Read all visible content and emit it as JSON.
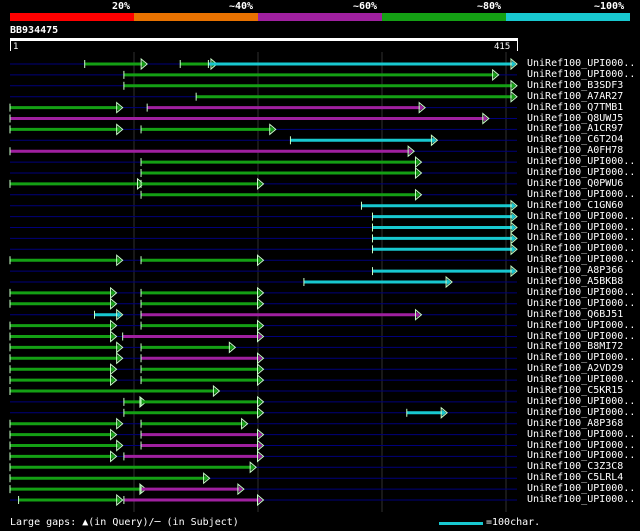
{
  "query": {
    "id": "BB934475",
    "length_start": "1",
    "length_end": "415"
  },
  "identity_scale": [
    {
      "label": "20%",
      "color": "#ff0000"
    },
    {
      "label": "~40%",
      "color": "#e87200"
    },
    {
      "label": "~60%",
      "color": "#a020a0"
    },
    {
      "label": "~80%",
      "color": "#14a014"
    },
    {
      "label": "~100%",
      "color": "#18c8d0"
    }
  ],
  "colors": {
    "red": "#ff0000",
    "orange": "#e87200",
    "magenta": "#a020a0",
    "green": "#14a014",
    "cyan": "#18c8d0",
    "track": "#00007a"
  },
  "hits": [
    {
      "label": "UniRef100_UPI000..",
      "segs": [
        [
          1,
          "green",
          62,
          113
        ],
        [
          4,
          "green",
          140,
          170
        ],
        [
          1,
          "cyan",
          163,
          415
        ]
      ]
    },
    {
      "label": "UniRef100_UPI000..",
      "segs": [
        [
          1,
          "green",
          94,
          400
        ]
      ]
    },
    {
      "label": "UniRef100_B3SDF3",
      "segs": [
        [
          1,
          "green",
          94,
          415
        ]
      ]
    },
    {
      "label": "UniRef100_A7AR27",
      "segs": [
        [
          1,
          "green",
          153,
          415
        ]
      ]
    },
    {
      "label": "UniRef100_Q7TMB1",
      "segs": [
        [
          0,
          "green",
          1,
          93
        ],
        [
          0,
          "magenta",
          113,
          340
        ]
      ]
    },
    {
      "label": "UniRef100_Q8UWJ5",
      "segs": [
        [
          1,
          "magenta",
          1,
          392
        ]
      ]
    },
    {
      "label": "UniRef100_A1CR97",
      "segs": [
        [
          0,
          "green",
          1,
          93
        ],
        [
          0,
          "green",
          108,
          218
        ]
      ]
    },
    {
      "label": "UniRef100_C6T2O4",
      "segs": [
        [
          0,
          "cyan",
          230,
          350
        ]
      ]
    },
    {
      "label": "UniRef100_A0FH78",
      "segs": [
        [
          1,
          "magenta",
          1,
          331
        ]
      ]
    },
    {
      "label": "UniRef100_UPI000..",
      "segs": [
        [
          0,
          "green",
          108,
          337
        ]
      ]
    },
    {
      "label": "UniRef100_UPI000..",
      "segs": [
        [
          0,
          "green",
          108,
          337
        ]
      ]
    },
    {
      "label": "UniRef100_Q0PWU6",
      "segs": [
        [
          1,
          "green",
          1,
          110
        ],
        [
          0,
          "green",
          108,
          208
        ]
      ]
    },
    {
      "label": "UniRef100_UPI000..",
      "segs": [
        [
          0,
          "green",
          108,
          337
        ]
      ]
    },
    {
      "label": "UniRef100_C1GN60",
      "segs": [
        [
          0,
          "cyan",
          288,
          415
        ]
      ]
    },
    {
      "label": "UniRef100_UPI000..",
      "segs": [
        [
          0,
          "cyan",
          297,
          415
        ]
      ]
    },
    {
      "label": "UniRef100_UPI000..",
      "segs": [
        [
          0,
          "cyan",
          297,
          415
        ]
      ]
    },
    {
      "label": "UniRef100_UPI000..",
      "segs": [
        [
          0,
          "cyan",
          297,
          415
        ]
      ]
    },
    {
      "label": "UniRef100_UPI000..",
      "segs": [
        [
          0,
          "cyan",
          297,
          415
        ]
      ]
    },
    {
      "label": "UniRef100_UPI000..",
      "segs": [
        [
          0,
          "green",
          1,
          93
        ],
        [
          0,
          "green",
          108,
          208
        ]
      ]
    },
    {
      "label": "UniRef100_A8P366",
      "segs": [
        [
          0,
          "cyan",
          297,
          415
        ]
      ]
    },
    {
      "label": "UniRef100_A5BKB8",
      "segs": [
        [
          0,
          "cyan",
          241,
          362
        ]
      ]
    },
    {
      "label": "UniRef100_UPI000..",
      "segs": [
        [
          0,
          "green",
          1,
          88
        ],
        [
          0,
          "green",
          108,
          208
        ]
      ]
    },
    {
      "label": "UniRef100_UPI000..",
      "segs": [
        [
          0,
          "green",
          1,
          88
        ],
        [
          0,
          "green",
          108,
          208
        ]
      ]
    },
    {
      "label": "UniRef100_Q6BJ51",
      "segs": [
        [
          0,
          "cyan",
          70,
          93
        ],
        [
          1,
          "magenta",
          108,
          337
        ]
      ]
    },
    {
      "label": "UniRef100_UPI000..",
      "segs": [
        [
          0,
          "green",
          1,
          88
        ],
        [
          0,
          "green",
          108,
          208
        ]
      ]
    },
    {
      "label": "UniRef100_UPI000..",
      "segs": [
        [
          0,
          "green",
          1,
          88
        ],
        [
          0,
          "magenta",
          93,
          208
        ]
      ]
    },
    {
      "label": "UniRef100_B8MI72",
      "segs": [
        [
          0,
          "green",
          1,
          93
        ],
        [
          0,
          "green",
          108,
          185
        ]
      ]
    },
    {
      "label": "UniRef100_UPI000..",
      "segs": [
        [
          0,
          "green",
          1,
          93
        ],
        [
          0,
          "magenta",
          108,
          208
        ]
      ]
    },
    {
      "label": "UniRef100_A2VD29",
      "segs": [
        [
          0,
          "green",
          1,
          88
        ],
        [
          0,
          "green",
          108,
          208
        ]
      ]
    },
    {
      "label": "UniRef100_UPI000..",
      "segs": [
        [
          0,
          "green",
          1,
          88
        ],
        [
          0,
          "green",
          108,
          208
        ]
      ]
    },
    {
      "label": "UniRef100_C5KR15",
      "segs": [
        [
          0,
          "green",
          1,
          172
        ]
      ]
    },
    {
      "label": "UniRef100_UPI000..",
      "segs": [
        [
          0,
          "green",
          94,
          112
        ],
        [
          0,
          "green",
          108,
          208
        ]
      ]
    },
    {
      "label": "UniRef100_UPI000..",
      "segs": [
        [
          0,
          "green",
          94,
          208
        ],
        [
          0,
          "cyan",
          325,
          358
        ]
      ]
    },
    {
      "label": "UniRef100_A8P368",
      "segs": [
        [
          0,
          "green",
          1,
          93
        ],
        [
          0,
          "green",
          108,
          195
        ]
      ]
    },
    {
      "label": "UniRef100_UPI000..",
      "segs": [
        [
          0,
          "green",
          1,
          88
        ],
        [
          0,
          "magenta",
          108,
          208
        ]
      ]
    },
    {
      "label": "UniRef100_UPI000..",
      "segs": [
        [
          0,
          "green",
          1,
          93
        ],
        [
          0,
          "magenta",
          108,
          208
        ]
      ]
    },
    {
      "label": "UniRef100_UPI000..",
      "segs": [
        [
          0,
          "green",
          1,
          88
        ],
        [
          0,
          "magenta",
          94,
          208
        ]
      ]
    },
    {
      "label": "UniRef100_C3Z3C8",
      "segs": [
        [
          0,
          "green",
          1,
          202
        ]
      ]
    },
    {
      "label": "UniRef100_C5LRL4",
      "segs": [
        [
          0,
          "green",
          1,
          164
        ]
      ]
    },
    {
      "label": "UniRef100_UPI000..",
      "segs": [
        [
          0,
          "green",
          1,
          112
        ],
        [
          0,
          "magenta",
          108,
          192
        ]
      ]
    },
    {
      "label": "UniRef100_UPI000..",
      "segs": [
        [
          0,
          "green",
          8,
          93
        ],
        [
          0,
          "magenta",
          94,
          208
        ]
      ]
    }
  ],
  "footer": {
    "gaps_text": "Large gaps: ▲(in Query)/─ (in Subject)",
    "legend_text": "=100char."
  }
}
